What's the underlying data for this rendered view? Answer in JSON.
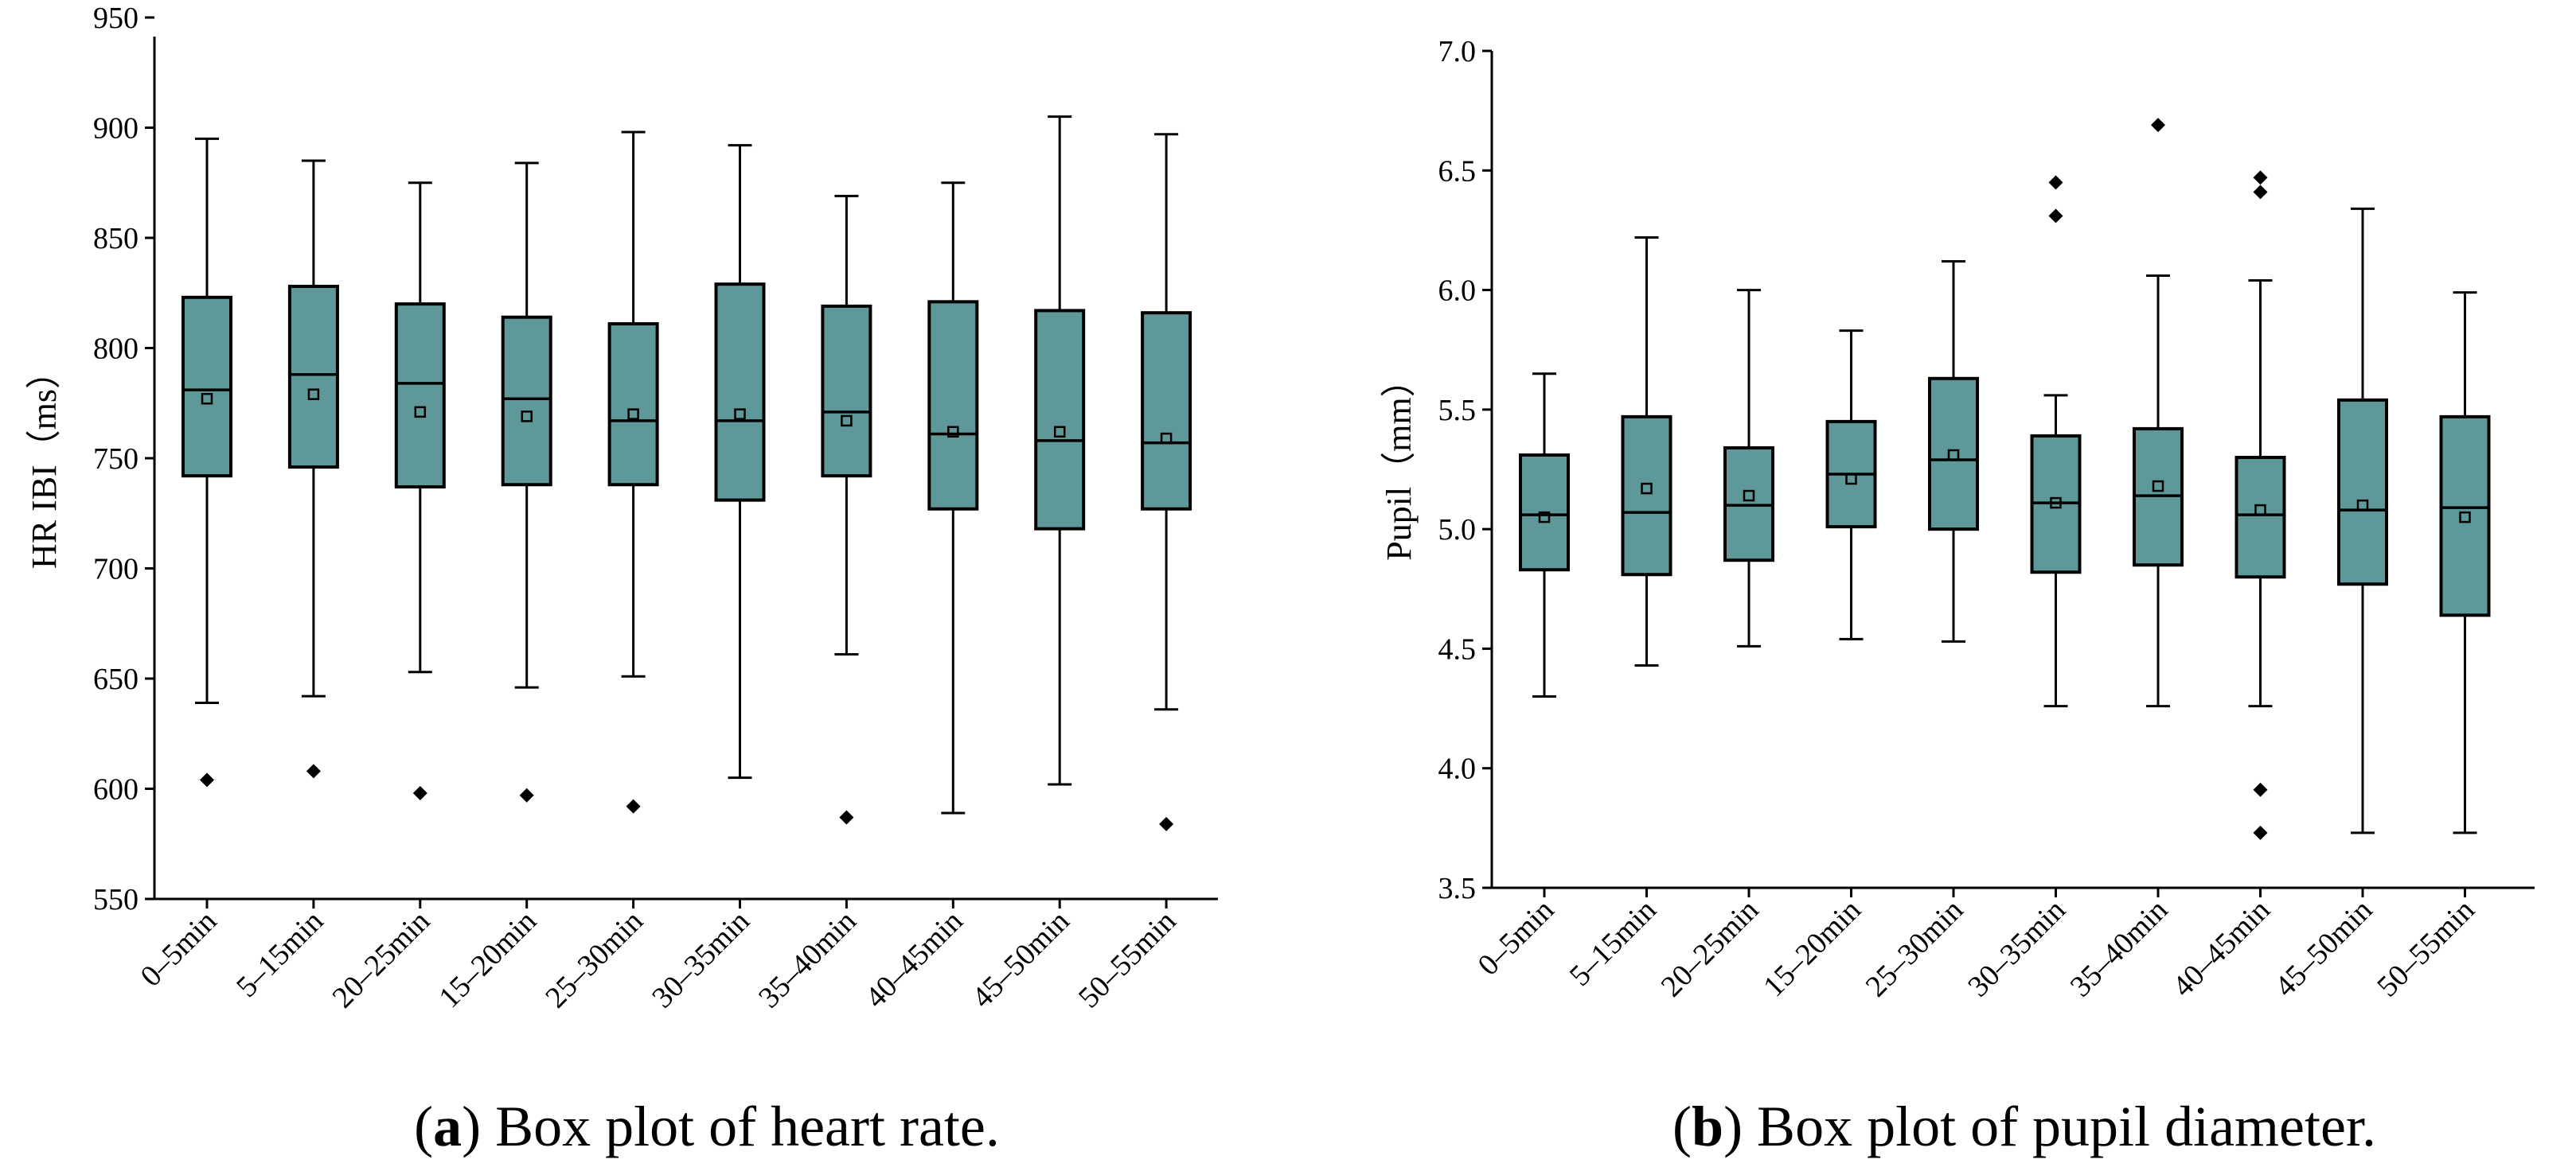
{
  "colors": {
    "box_fill": "#5f9898",
    "line": "#000000",
    "background": "#ffffff"
  },
  "chart_data": [
    {
      "type": "box",
      "title": "",
      "xlabel": "",
      "ylabel": "HR IBI（ms）",
      "ylim": [
        550,
        950
      ],
      "yticks": [
        "550",
        "600",
        "650",
        "700",
        "750",
        "800",
        "850",
        "900",
        "950"
      ],
      "categories": [
        "0–5min",
        "5–15min",
        "20–25min",
        "15–20min",
        "25–30min",
        "30–35min",
        "35–40min",
        "40–45min",
        "45–50min",
        "50–55min"
      ],
      "boxes": [
        {
          "min": 639,
          "q1": 742,
          "median": 781,
          "q3": 823,
          "max": 895,
          "mean": 777,
          "outliers": [
            604
          ]
        },
        {
          "min": 642,
          "q1": 746,
          "median": 788,
          "q3": 828,
          "max": 885,
          "mean": 779,
          "outliers": [
            608
          ]
        },
        {
          "min": 653,
          "q1": 737,
          "median": 784,
          "q3": 820,
          "max": 875,
          "mean": 771,
          "outliers": [
            598
          ]
        },
        {
          "min": 646,
          "q1": 738,
          "median": 777,
          "q3": 814,
          "max": 884,
          "mean": 769,
          "outliers": [
            597
          ]
        },
        {
          "min": 651,
          "q1": 738,
          "median": 767,
          "q3": 811,
          "max": 898,
          "mean": 770,
          "outliers": [
            592
          ]
        },
        {
          "min": 605,
          "q1": 731,
          "median": 767,
          "q3": 829,
          "max": 892,
          "mean": 770,
          "outliers": []
        },
        {
          "min": 661,
          "q1": 742,
          "median": 771,
          "q3": 819,
          "max": 869,
          "mean": 767,
          "outliers": [
            587
          ]
        },
        {
          "min": 589,
          "q1": 727,
          "median": 761,
          "q3": 821,
          "max": 875,
          "mean": 762,
          "outliers": []
        },
        {
          "min": 602,
          "q1": 718,
          "median": 758,
          "q3": 817,
          "max": 905,
          "mean": 762,
          "outliers": []
        },
        {
          "min": 636,
          "q1": 727,
          "median": 757,
          "q3": 816,
          "max": 897,
          "mean": 759,
          "outliers": [
            584
          ]
        }
      ],
      "caption_label": "a",
      "caption_text": "Box plot of heart rate."
    },
    {
      "type": "box",
      "title": "",
      "xlabel": "",
      "ylabel": "Pupil（mm）",
      "ylim": [
        3.5,
        7.0
      ],
      "yticks": [
        "3.5",
        "4.0",
        "4.5",
        "5.0",
        "5.5",
        "6.0",
        "6.5",
        "7.0"
      ],
      "categories": [
        "0–5min",
        "5–15min",
        "20–25min",
        "15–20min",
        "25–30min",
        "30–35min",
        "35–40min",
        "40–45min",
        "45–50min",
        "50–55min"
      ],
      "boxes": [
        {
          "min": 4.3,
          "q1": 4.83,
          "median": 5.06,
          "q3": 5.31,
          "max": 5.65,
          "mean": 5.05,
          "outliers": []
        },
        {
          "min": 4.43,
          "q1": 4.81,
          "median": 5.07,
          "q3": 5.47,
          "max": 6.22,
          "mean": 5.17,
          "outliers": []
        },
        {
          "min": 4.51,
          "q1": 4.87,
          "median": 5.1,
          "q3": 5.34,
          "max": 6.0,
          "mean": 5.14,
          "outliers": []
        },
        {
          "min": 4.54,
          "q1": 5.01,
          "median": 5.23,
          "q3": 5.45,
          "max": 5.83,
          "mean": 5.21,
          "outliers": []
        },
        {
          "min": 4.53,
          "q1": 5.0,
          "median": 5.29,
          "q3": 5.63,
          "max": 6.12,
          "mean": 5.31,
          "outliers": []
        },
        {
          "min": 4.26,
          "q1": 4.82,
          "median": 5.11,
          "q3": 5.39,
          "max": 5.56,
          "mean": 5.11,
          "outliers": [
            6.45,
            6.31
          ]
        },
        {
          "min": 4.26,
          "q1": 4.85,
          "median": 5.14,
          "q3": 5.42,
          "max": 6.06,
          "mean": 5.18,
          "outliers": [
            6.69
          ]
        },
        {
          "min": 4.26,
          "q1": 4.8,
          "median": 5.06,
          "q3": 5.3,
          "max": 6.04,
          "mean": 5.08,
          "outliers": [
            6.47,
            6.41,
            3.91,
            3.73
          ]
        },
        {
          "min": 3.73,
          "q1": 4.77,
          "median": 5.08,
          "q3": 5.54,
          "max": 6.34,
          "mean": 5.1,
          "outliers": []
        },
        {
          "min": 3.73,
          "q1": 4.64,
          "median": 5.09,
          "q3": 5.47,
          "max": 5.99,
          "mean": 5.05,
          "outliers": []
        }
      ],
      "caption_label": "b",
      "caption_text": "Box plot of pupil diameter."
    }
  ]
}
